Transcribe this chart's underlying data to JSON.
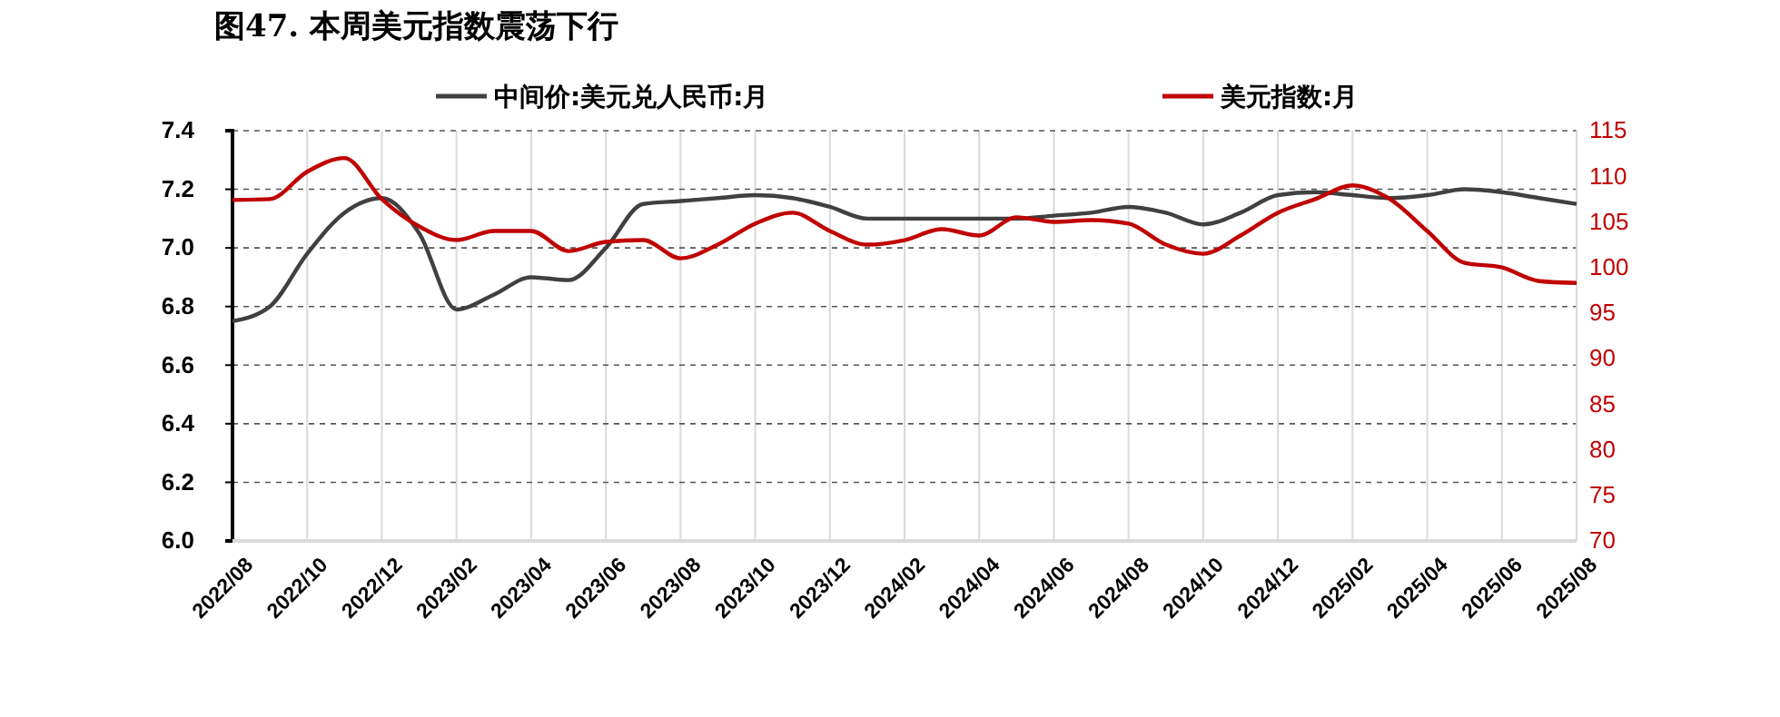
{
  "chart_data": {
    "type": "line",
    "title": "图47. 本周美元指数震荡下行",
    "categories": [
      "2022/08",
      null,
      "2022/10",
      null,
      "2022/12",
      null,
      "2023/02",
      null,
      "2023/04",
      null,
      "2023/06",
      null,
      "2023/08",
      null,
      "2023/10",
      null,
      "2023/12",
      null,
      "2024/02",
      null,
      "2024/04",
      null,
      "2024/06",
      null,
      "2024/08",
      null,
      "2024/10",
      null,
      "2024/12",
      null,
      "2025/02",
      null,
      "2025/04",
      null,
      "2025/06",
      null,
      "2025/08"
    ],
    "series": [
      {
        "name": "中间价:美元兑人民币:月",
        "color": "#404040",
        "values": [
          6.75,
          6.8,
          6.98,
          7.12,
          7.17,
          7.05,
          6.79,
          6.84,
          6.9,
          6.89,
          7.0,
          7.15,
          7.16,
          7.17,
          7.18,
          7.17,
          7.14,
          7.1,
          7.1,
          7.1,
          7.1,
          7.1,
          7.11,
          7.12,
          7.14,
          7.12,
          7.08,
          7.12,
          7.18,
          7.19,
          7.18,
          7.17,
          7.18,
          7.2,
          7.19,
          7.17,
          7.15
        ]
      },
      {
        "name": "美元指数:月",
        "color": "#c00000",
        "axis": "y2",
        "values": [
          107.4,
          107.5,
          110.5,
          112.0,
          107.5,
          104.5,
          103.0,
          104.0,
          104.0,
          101.8,
          102.8,
          103.0,
          101.0,
          102.5,
          104.8,
          106.0,
          104.0,
          102.5,
          103.0,
          104.2,
          103.5,
          105.5,
          105.0,
          105.2,
          104.8,
          102.5,
          101.5,
          103.5,
          106.0,
          107.5,
          109.0,
          107.5,
          104.0,
          100.5,
          100.0,
          98.5,
          98.3
        ]
      }
    ],
    "ylim": [
      6.0,
      7.4
    ],
    "yticks": [
      {
        "value": 6.0,
        "label": "6.0"
      },
      6.2,
      6.4,
      6.6,
      6.8,
      {
        "value": 7.0,
        "label": "7.0"
      },
      7.2,
      7.4
    ],
    "y2lim": [
      70,
      115
    ],
    "y2ticks": [
      70,
      75,
      80,
      85,
      90,
      95,
      100,
      105,
      110,
      115
    ],
    "grid": true,
    "legend": "top"
  }
}
